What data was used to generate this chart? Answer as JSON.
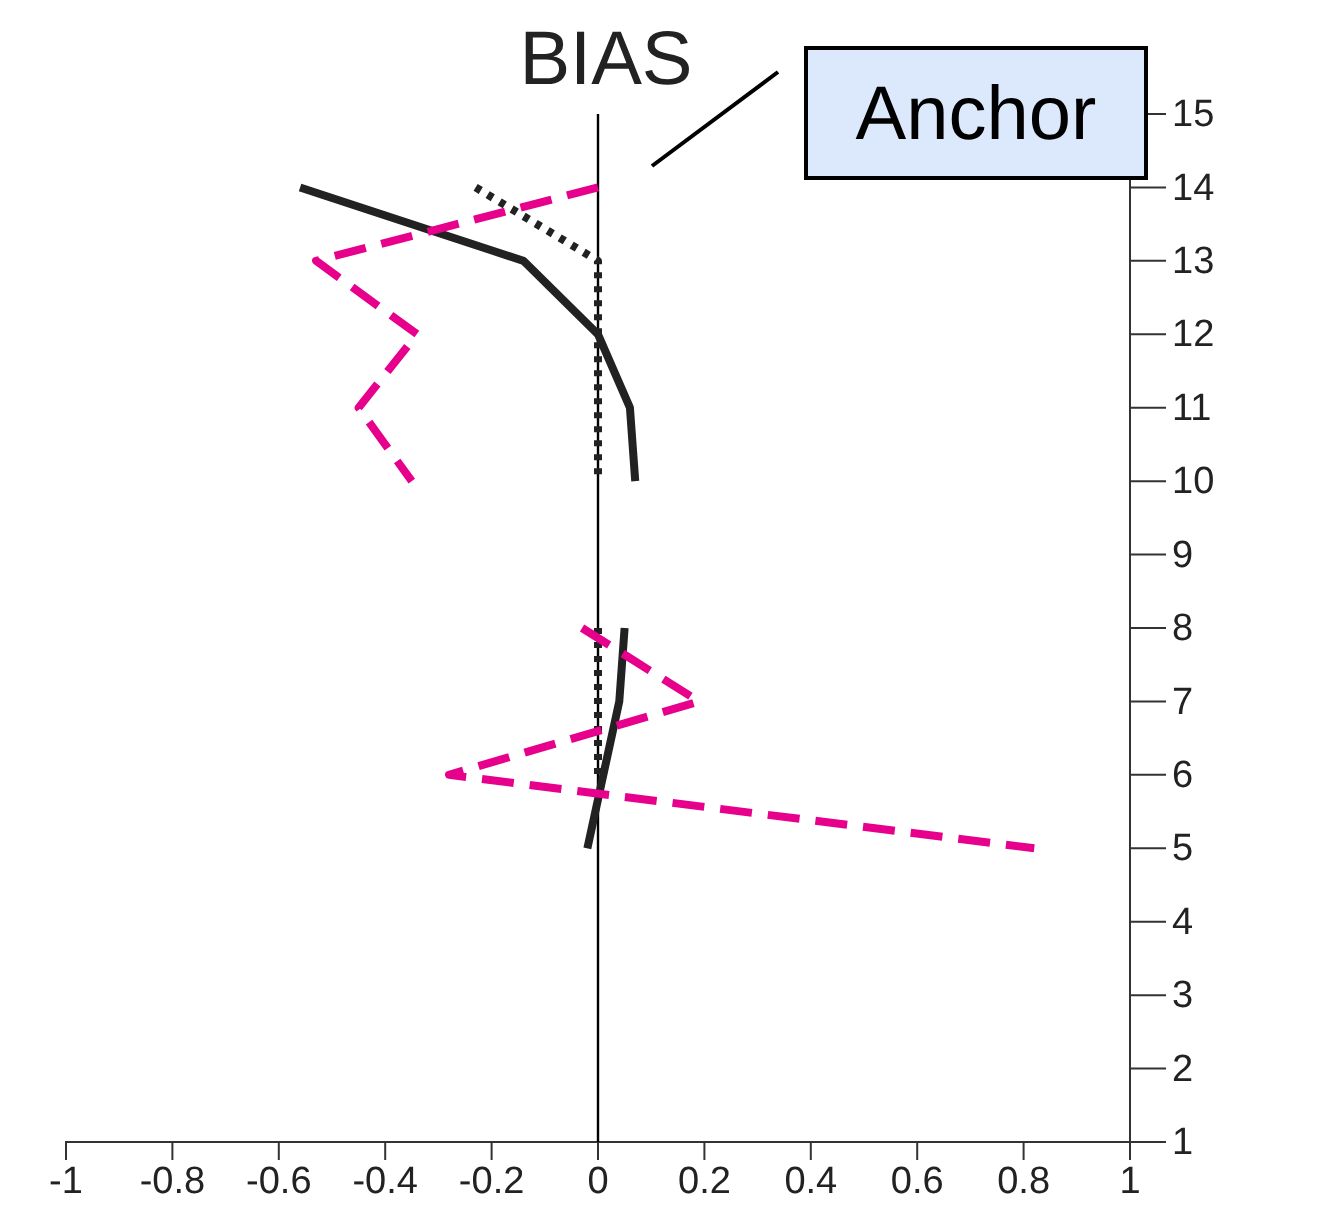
{
  "chart_data": {
    "type": "line",
    "title": "BIAS",
    "xlim": [
      -1,
      1
    ],
    "xticks": [
      -1,
      -0.8,
      -0.6,
      -0.4,
      -0.2,
      0,
      0.2,
      0.4,
      0.6,
      0.8,
      1
    ],
    "ylim": [
      1,
      15
    ],
    "yticks": [
      1,
      2,
      3,
      4,
      5,
      6,
      7,
      8,
      9,
      10,
      11,
      12,
      13,
      14,
      15
    ],
    "grid": false,
    "series": [
      {
        "color": "#222222",
        "line_style": "solid",
        "x": [
          -0.56,
          -0.14,
          0,
          0.06,
          0.07,
          null,
          0.05,
          0.04,
          0.01,
          -0.02
        ],
        "values": [
          14,
          13,
          12,
          11,
          10,
          null,
          8,
          7,
          6,
          5
        ]
      },
      {
        "color": "#222222",
        "line_style": "dotted",
        "x": [
          -0.23,
          0,
          0,
          0,
          0,
          null,
          0,
          0,
          0
        ],
        "values": [
          14,
          13,
          12,
          11,
          10,
          null,
          8,
          7,
          6
        ]
      },
      {
        "color": "#e6008c",
        "line_style": "dashed",
        "x": [
          0,
          -0.53,
          -0.34,
          -0.45,
          -0.35,
          null,
          -0.03,
          0.19,
          -0.28,
          0.82
        ],
        "values": [
          14,
          13,
          12,
          11,
          10,
          null,
          8,
          7,
          6,
          5
        ]
      }
    ],
    "ref_lines": [
      {
        "axis": "x",
        "value": 0,
        "color": "#000000"
      }
    ],
    "annotations": [
      "Anchor"
    ]
  }
}
